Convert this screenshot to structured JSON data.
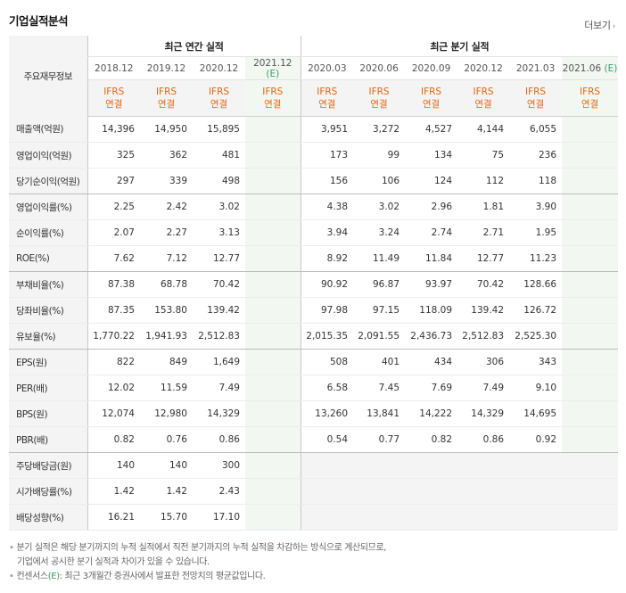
{
  "title": "기업실적분석",
  "more_label": "더보기",
  "more_icon": "chevron-right-icon",
  "groups": {
    "annual": "최근 연간 실적",
    "quarterly": "최근 분기 실적"
  },
  "corner_label": "주요재무정보",
  "estimate_mark": "(E)",
  "annual_periods": [
    "2018.12",
    "2019.12",
    "2020.12",
    "2021.12"
  ],
  "quarter_periods": [
    "2020.03",
    "2020.06",
    "2020.09",
    "2020.12",
    "2021.03",
    "2021.06"
  ],
  "standard_top": "IFRS",
  "standard_bottom": "연결",
  "rows": [
    {
      "label": "매출액(억원)",
      "annual": [
        "14,396",
        "14,950",
        "15,895",
        ""
      ],
      "quarterly": [
        "3,951",
        "3,272",
        "4,527",
        "4,144",
        "6,055",
        ""
      ]
    },
    {
      "label": "영업이익(억원)",
      "annual": [
        "325",
        "362",
        "481",
        ""
      ],
      "quarterly": [
        "173",
        "99",
        "134",
        "75",
        "236",
        ""
      ]
    },
    {
      "label": "당기순이익(억원)",
      "annual": [
        "297",
        "339",
        "498",
        ""
      ],
      "quarterly": [
        "156",
        "106",
        "124",
        "112",
        "118",
        ""
      ]
    },
    {
      "label": "영업이익률(%)",
      "annual": [
        "2.25",
        "2.42",
        "3.02",
        ""
      ],
      "quarterly": [
        "4.38",
        "3.02",
        "2.96",
        "1.81",
        "3.90",
        ""
      ]
    },
    {
      "label": "순이익률(%)",
      "annual": [
        "2.07",
        "2.27",
        "3.13",
        ""
      ],
      "quarterly": [
        "3.94",
        "3.24",
        "2.74",
        "2.71",
        "1.95",
        ""
      ]
    },
    {
      "label": "ROE(%)",
      "annual": [
        "7.62",
        "7.12",
        "12.77",
        ""
      ],
      "quarterly": [
        "8.92",
        "11.49",
        "11.84",
        "12.77",
        "11.23",
        ""
      ]
    },
    {
      "label": "부채비율(%)",
      "annual": [
        "87.38",
        "68.78",
        "70.42",
        ""
      ],
      "quarterly": [
        "90.92",
        "96.87",
        "93.97",
        "70.42",
        "128.66",
        ""
      ]
    },
    {
      "label": "당좌비율(%)",
      "annual": [
        "87.35",
        "153.80",
        "139.42",
        ""
      ],
      "quarterly": [
        "97.98",
        "97.15",
        "118.09",
        "139.42",
        "126.72",
        ""
      ]
    },
    {
      "label": "유보율(%)",
      "annual": [
        "1,770.22",
        "1,941.93",
        "2,512.83",
        ""
      ],
      "quarterly": [
        "2,015.35",
        "2,091.55",
        "2,436.73",
        "2,512.83",
        "2,525.30",
        ""
      ]
    },
    {
      "label": "EPS(원)",
      "annual": [
        "822",
        "849",
        "1,649",
        ""
      ],
      "quarterly": [
        "508",
        "401",
        "434",
        "306",
        "343",
        ""
      ]
    },
    {
      "label": "PER(배)",
      "annual": [
        "12.02",
        "11.59",
        "7.49",
        ""
      ],
      "quarterly": [
        "6.58",
        "7.45",
        "7.69",
        "7.49",
        "9.10",
        ""
      ]
    },
    {
      "label": "BPS(원)",
      "annual": [
        "12,074",
        "12,980",
        "14,329",
        ""
      ],
      "quarterly": [
        "13,260",
        "13,841",
        "14,222",
        "14,329",
        "14,695",
        ""
      ]
    },
    {
      "label": "PBR(배)",
      "annual": [
        "0.82",
        "0.76",
        "0.86",
        ""
      ],
      "quarterly": [
        "0.54",
        "0.77",
        "0.82",
        "0.86",
        "0.92",
        ""
      ]
    },
    {
      "label": "주당배당금(원)",
      "annual": [
        "140",
        "140",
        "300",
        ""
      ],
      "quarterly": [
        "",
        "",
        "",
        "",
        "",
        ""
      ]
    },
    {
      "label": "시가배당률(%)",
      "annual": [
        "1.42",
        "1.42",
        "2.43",
        ""
      ],
      "quarterly": [
        "",
        "",
        "",
        "",
        "",
        ""
      ]
    },
    {
      "label": "배당성향(%)",
      "annual": [
        "16.21",
        "15.70",
        "17.10",
        ""
      ],
      "quarterly": [
        "",
        "",
        "",
        "",
        "",
        ""
      ]
    }
  ],
  "notes": {
    "line1": "분기 실적은 해당 분기까지의 누적 실적에서 직전 분기까지의 누적 실적을 차감하는 방식으로 계산되므로,",
    "line2": "기업에서 공시한 분기 실적과 차이가 있을 수 있습니다.",
    "line3_prefix": "컨센서스",
    "line3_mark": "(E)",
    "line3_suffix": ": 최근 3개월간 증권사에서 발표한 전망치의 평균값입니다."
  },
  "colors": {
    "ifrs": "#e16611",
    "estimate": "#3a9b63",
    "label_bg": "#f4f4f4",
    "estimate_bg": "#f2f7f2"
  }
}
